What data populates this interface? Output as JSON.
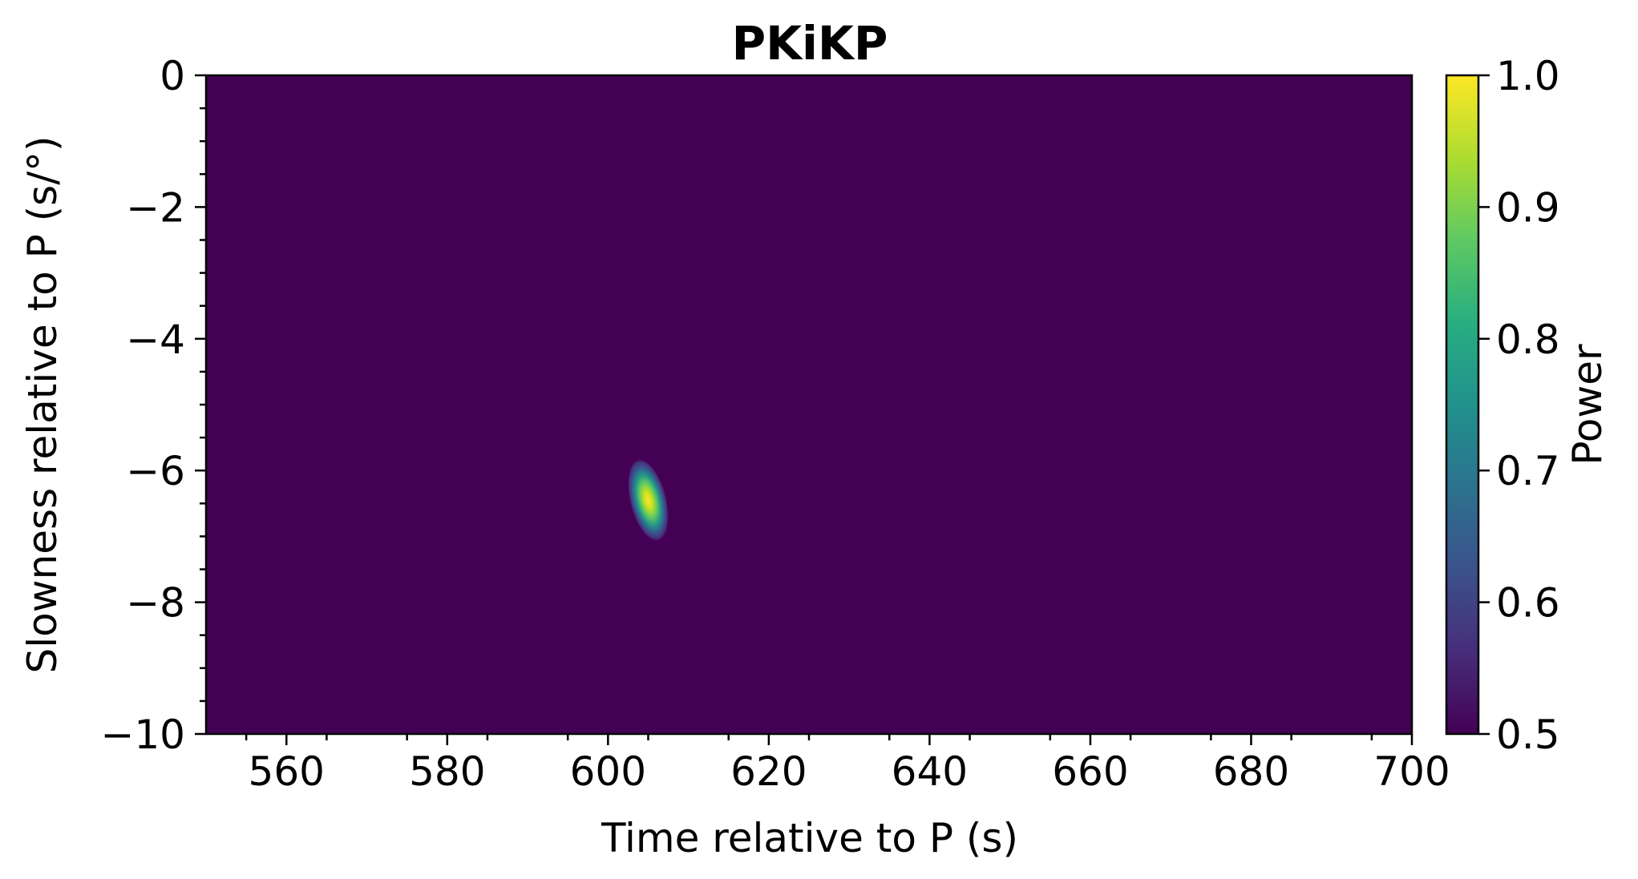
{
  "chart_data": {
    "type": "heatmap",
    "title": "PKiKP",
    "xlabel": "Time relative to P (s)",
    "ylabel": "Slowness relative to P (s/°)",
    "xlim": [
      550,
      700
    ],
    "ylim": [
      -10,
      0
    ],
    "x_ticks": [
      560,
      580,
      600,
      620,
      640,
      660,
      680,
      700
    ],
    "x_tick_labels": [
      "560",
      "580",
      "600",
      "620",
      "640",
      "660",
      "680",
      "700"
    ],
    "y_ticks": [
      0,
      -2,
      -4,
      -6,
      -8,
      -10
    ],
    "y_tick_labels": [
      "0",
      "−2",
      "−4",
      "−6",
      "−8",
      "−10"
    ],
    "colorbar": {
      "label": "Power",
      "range": [
        0.5,
        1.0
      ],
      "ticks": [
        1.0,
        0.9,
        0.8,
        0.7,
        0.6,
        0.5
      ],
      "tick_labels": [
        "1.0",
        "0.9",
        "0.8",
        "0.7",
        "0.6",
        "0.5"
      ],
      "colormap": "viridis"
    },
    "background_value": 0.5,
    "peak": {
      "time": 605,
      "slowness": -6.45,
      "power": 1.0,
      "time_extent": [
        602.8,
        607.4
      ],
      "slowness_extent": [
        -7.2,
        -5.9
      ]
    },
    "grid": false
  }
}
